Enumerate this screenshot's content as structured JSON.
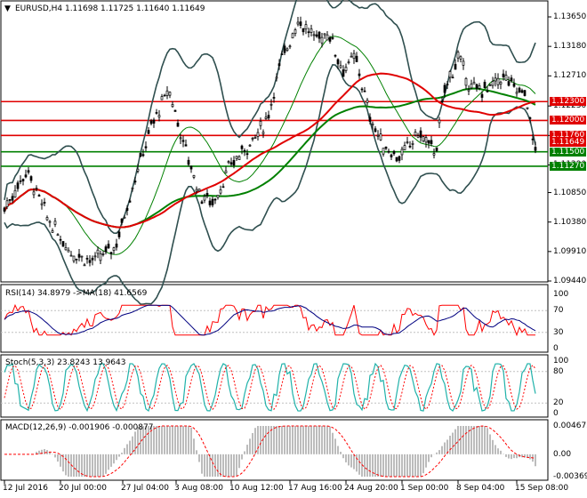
{
  "header": {
    "symbol_line": "EURUSD,H4  1.11698 1.11725 1.11640 1.11649"
  },
  "price_axis": {
    "ticks": [
      "1.13650",
      "1.13180",
      "1.12710",
      "1.12230",
      "1.11760",
      "1.11290",
      "1.10850",
      "1.10380",
      "1.09910",
      "1.09440"
    ]
  },
  "levels": [
    {
      "value": "1.12300",
      "color": "#e00000"
    },
    {
      "value": "1.12000",
      "color": "#e00000"
    },
    {
      "value": "1.11760",
      "color": "#e00000"
    },
    {
      "value": "1.11649",
      "color": "#e00000"
    },
    {
      "value": "1.11500",
      "color": "#008000"
    },
    {
      "value": "1.11270",
      "color": "#008000"
    }
  ],
  "rsi": {
    "title": "RSI(14) 34.8979   ->MA(18) 41.6569",
    "ticks": [
      "100",
      "70",
      "30",
      "0"
    ]
  },
  "stoch": {
    "title": "Stoch(5,3,3) 23.8243 13.9643",
    "ticks": [
      "100",
      "80",
      "20",
      "0"
    ]
  },
  "macd": {
    "title": "MACD(12,26,9) -0.001906 -0.000877",
    "ticks": [
      "0.004673",
      "0.00",
      "-0.003696"
    ]
  },
  "time_axis": {
    "ticks": [
      "12 Jul 2016",
      "20 Jul 00:00",
      "27 Jul 04:00",
      "3 Aug 08:00",
      "10 Aug 12:00",
      "17 Aug 16:00",
      "24 Aug 20:00",
      "1 Sep 00:00",
      "8 Sep 04:00",
      "15 Sep 08:00"
    ]
  },
  "colors": {
    "bull_candle": "#000000",
    "ma_red": "#e00000",
    "ma_green": "#008000",
    "bollinger": "#2f4f4f",
    "rsi_line": "#ff0000",
    "rsi_ma": "#000080",
    "stoch_main": "#20b2aa",
    "stoch_signal": "#ff0000",
    "macd_hist": "#a0a0a0",
    "macd_signal": "#ff0000"
  }
}
